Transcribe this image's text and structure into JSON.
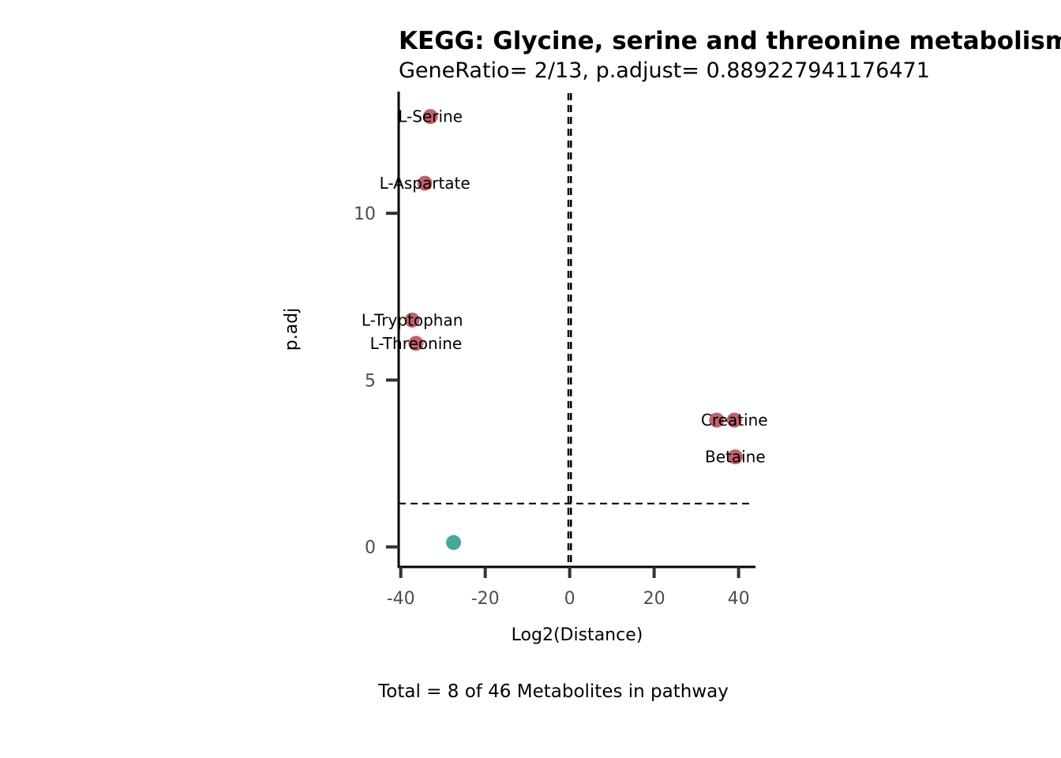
{
  "chart_data": {
    "type": "scatter",
    "title": "KEGG: Glycine, serine and threonine metabolism",
    "subtitle": "GeneRatio= 2/13, p.adjust= 0.889227941176471",
    "xlabel": "Log2(Distance)",
    "ylabel": "p.adj",
    "caption": "Total = 8 of 46 Metabolites in pathway",
    "xlim": [
      -40.5,
      44
    ],
    "ylim": [
      -0.6,
      13.6
    ],
    "xticks": [
      -40,
      -20,
      0,
      20,
      40
    ],
    "yticks": [
      0,
      5,
      10
    ],
    "grid": false,
    "vlines": [
      -0.3,
      0.3
    ],
    "hline": 1.3,
    "colors": {
      "significant": "#c0626d",
      "nonsignificant": "#45aa9b"
    },
    "points": [
      {
        "label": "L-Serine",
        "x": -33,
        "y": 12.9,
        "significant": true
      },
      {
        "label": "L-Aspartate",
        "x": -34.3,
        "y": 10.9,
        "significant": true
      },
      {
        "label": "L-Tryptophan",
        "x": -37.3,
        "y": 6.8,
        "significant": true
      },
      {
        "label": "L-Threonine",
        "x": -36.4,
        "y": 6.1,
        "significant": true
      },
      {
        "label": "",
        "x": 34.8,
        "y": 3.8,
        "significant": true
      },
      {
        "label": "Creatine",
        "x": 39,
        "y": 3.8,
        "significant": true
      },
      {
        "label": "Betaine",
        "x": 39.2,
        "y": 2.7,
        "significant": true
      },
      {
        "label": "",
        "x": -27.5,
        "y": 0.13,
        "significant": false
      }
    ]
  }
}
